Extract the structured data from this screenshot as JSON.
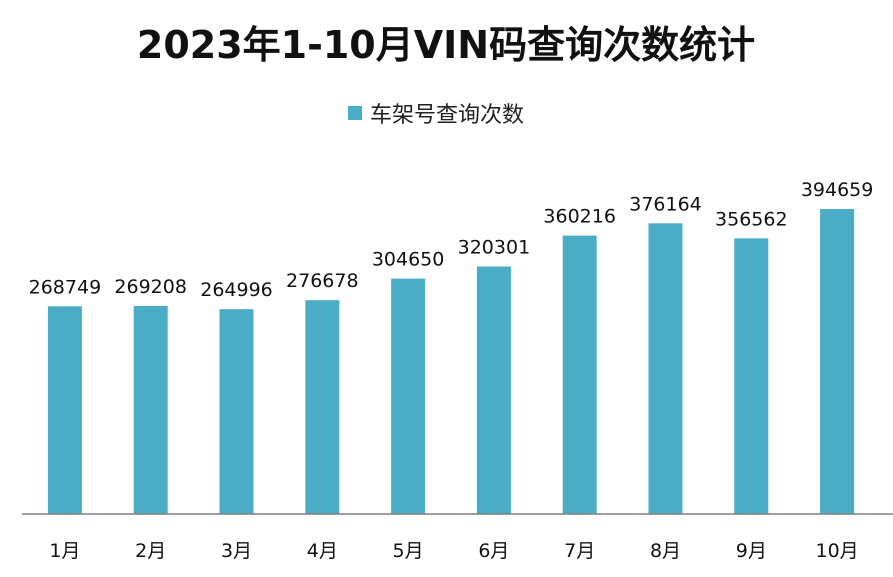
{
  "chart_data": {
    "type": "bar",
    "title": "2023年1-10月VIN码查询次数统计",
    "categories": [
      "1月",
      "2月",
      "3月",
      "4月",
      "5月",
      "6月",
      "7月",
      "8月",
      "9月",
      "10月"
    ],
    "series": [
      {
        "name": "车架号查询次数",
        "color": "#4BACC6",
        "values": [
          268749,
          269208,
          264996,
          276678,
          304650,
          320301,
          360216,
          376164,
          356562,
          394659
        ]
      }
    ],
    "xlabel": "",
    "ylabel": "",
    "ylim": [
      0,
      450000
    ],
    "grid": false,
    "legend_position": "top",
    "data_labels": true,
    "axis_color": "#7F7F7F"
  }
}
